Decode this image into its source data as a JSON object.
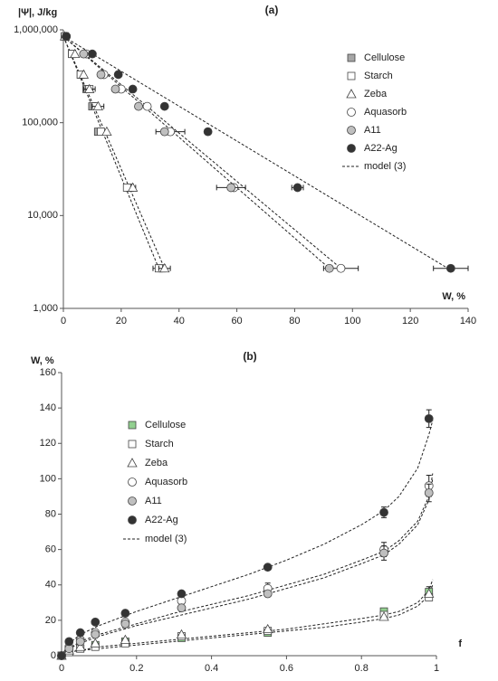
{
  "chart_data": [
    {
      "type": "scatter",
      "title": "(a)",
      "y_label": "|Ψ|, J/kg",
      "x_label": "W, %",
      "xlim": [
        0,
        140
      ],
      "xticks": [
        0,
        20,
        40,
        60,
        80,
        100,
        120,
        140
      ],
      "ylim": [
        1000,
        1000000
      ],
      "ylog": true,
      "yticks": [
        {
          "value": 1000,
          "label": "1,000"
        },
        {
          "value": 10000,
          "label": "10,000"
        },
        {
          "value": 100000,
          "label": "100,000"
        },
        {
          "value": 1000000,
          "label": "1,000,000"
        }
      ],
      "legend": "upper right",
      "y": [
        850000,
        550000,
        330000,
        230000,
        150000,
        80000,
        20000,
        2700
      ],
      "series": [
        {
          "name": "Cellulose",
          "marker": "square",
          "color": "#a6a6a6",
          "x": [
            0.5,
            3,
            6,
            8,
            10,
            12,
            23,
            34
          ],
          "x_errors": [
            null,
            null,
            null,
            null,
            null,
            null,
            2,
            null
          ]
        },
        {
          "name": "Starch",
          "marker": "square",
          "color": "#ffffff",
          "x": [
            0.5,
            3,
            6,
            9,
            11,
            13,
            22,
            33
          ],
          "x_errors": [
            null,
            null,
            null,
            null,
            null,
            null,
            null,
            2
          ]
        },
        {
          "name": "Zeba",
          "marker": "triangle",
          "color": "#ffffff",
          "x": [
            0.5,
            4,
            7,
            9,
            12,
            15,
            24,
            35
          ],
          "x_errors": [
            null,
            null,
            null,
            2,
            2,
            null,
            null,
            2
          ]
        },
        {
          "name": "Aquasorb",
          "marker": "circle",
          "color": "#ffffff",
          "x": [
            1,
            8,
            14,
            20,
            29,
            37,
            59,
            96
          ],
          "x_errors": [
            null,
            null,
            null,
            null,
            null,
            5,
            null,
            6
          ]
        },
        {
          "name": "A11",
          "marker": "circle",
          "color": "#bfbfbf",
          "x": [
            1,
            7,
            13,
            18,
            26,
            35,
            58,
            92
          ],
          "x_errors": [
            null,
            null,
            null,
            null,
            null,
            null,
            5,
            null
          ]
        },
        {
          "name": "A22-Ag",
          "marker": "circle",
          "color": "#333333",
          "x": [
            1,
            10,
            19,
            24,
            35,
            50,
            81,
            134
          ],
          "x_errors": [
            null,
            null,
            null,
            null,
            null,
            null,
            2,
            6
          ]
        }
      ],
      "model": {
        "name": "model (3)",
        "lines": [
          {
            "x": [
              0,
              35
            ],
            "y": [
              850000,
              2700
            ]
          },
          {
            "x": [
              0,
              33
            ],
            "y": [
              850000,
              2700
            ]
          },
          {
            "x": [
              0,
              92
            ],
            "y": [
              850000,
              2700
            ]
          },
          {
            "x": [
              0,
              96
            ],
            "y": [
              850000,
              2700
            ]
          },
          {
            "x": [
              0,
              133
            ],
            "y": [
              850000,
              2700
            ]
          }
        ]
      }
    },
    {
      "type": "scatter",
      "title": "(b)",
      "y_label": "W, %",
      "x_label": "f",
      "xlim": [
        0,
        1
      ],
      "xticks": [
        0,
        0.2,
        0.4,
        0.6,
        0.8,
        1
      ],
      "ylim": [
        0,
        160
      ],
      "yticks": [
        0,
        20,
        40,
        60,
        80,
        100,
        120,
        140,
        160
      ],
      "legend": "upper left",
      "x": [
        0,
        0.02,
        0.05,
        0.09,
        0.17,
        0.32,
        0.55,
        0.86,
        0.98
      ],
      "series": [
        {
          "name": "Cellulose",
          "marker": "square",
          "color": "#92d08f",
          "values": [
            0,
            2,
            4,
            6,
            8,
            10,
            13,
            25,
            36
          ],
          "errors": [
            null,
            null,
            null,
            null,
            null,
            null,
            null,
            null,
            3
          ]
        },
        {
          "name": "Starch",
          "marker": "square",
          "color": "#ffffff",
          "values": [
            0,
            2,
            4,
            5,
            7,
            11,
            14,
            23,
            33
          ],
          "errors": [
            null,
            null,
            null,
            null,
            null,
            null,
            null,
            null,
            null
          ]
        },
        {
          "name": "Zeba",
          "marker": "triangle",
          "color": "#ffffff",
          "values": [
            0,
            3,
            5,
            7,
            9,
            12,
            15,
            22,
            35
          ],
          "errors": [
            null,
            null,
            null,
            null,
            null,
            null,
            null,
            null,
            null
          ]
        },
        {
          "name": "Aquasorb",
          "marker": "circle",
          "color": "#ffffff",
          "values": [
            0,
            5,
            9,
            13,
            19,
            31,
            38,
            60,
            96
          ],
          "errors": [
            null,
            null,
            null,
            null,
            null,
            null,
            3,
            4,
            6
          ]
        },
        {
          "name": "A11",
          "marker": "circle",
          "color": "#bfbfbf",
          "values": [
            0,
            4,
            8,
            12,
            18,
            27,
            35,
            58,
            92
          ],
          "errors": [
            null,
            null,
            null,
            null,
            null,
            null,
            null,
            4,
            5
          ]
        },
        {
          "name": "A22-Ag",
          "marker": "circle",
          "color": "#333333",
          "values": [
            0,
            8,
            13,
            19,
            24,
            35,
            50,
            81,
            134
          ],
          "errors": [
            null,
            null,
            null,
            null,
            null,
            null,
            null,
            3,
            5
          ]
        }
      ],
      "model": {
        "name": "model (3)",
        "lines": [
          {
            "x": [
              0,
              0.02,
              0.05,
              0.1,
              0.2,
              0.3,
              0.4,
              0.5,
              0.6,
              0.7,
              0.8,
              0.86,
              0.9,
              0.95,
              0.98,
              0.99
            ],
            "y": [
              0,
              7,
              12,
              17,
              25,
              32,
              39,
              46,
              54,
              63,
              74,
              82,
              90,
              106,
              125,
              133
            ]
          },
          {
            "x": [
              0,
              0.02,
              0.05,
              0.1,
              0.2,
              0.3,
              0.4,
              0.5,
              0.6,
              0.7,
              0.8,
              0.86,
              0.9,
              0.95,
              0.98,
              0.99
            ],
            "y": [
              0,
              4,
              8,
              12,
              18,
              24,
              29,
              34,
              40,
              46,
              54,
              59,
              65,
              76,
              90,
              103
            ]
          },
          {
            "x": [
              0,
              0.02,
              0.05,
              0.1,
              0.2,
              0.3,
              0.4,
              0.5,
              0.6,
              0.7,
              0.8,
              0.86,
              0.9,
              0.95,
              0.98,
              0.99
            ],
            "y": [
              0,
              4,
              7,
              11,
              17,
              22,
              27,
              32,
              38,
              44,
              52,
              57,
              63,
              74,
              88,
              100
            ]
          },
          {
            "x": [
              0,
              0.02,
              0.05,
              0.1,
              0.2,
              0.3,
              0.4,
              0.5,
              0.6,
              0.7,
              0.8,
              0.86,
              0.9,
              0.95,
              0.98,
              0.99
            ],
            "y": [
              0,
              2,
              3,
              5,
              7,
              9,
              11,
              13,
              15,
              18,
              21,
              23,
              25,
              30,
              37,
              43
            ]
          },
          {
            "x": [
              0,
              0.02,
              0.05,
              0.1,
              0.2,
              0.3,
              0.4,
              0.5,
              0.6,
              0.7,
              0.8,
              0.86,
              0.9,
              0.95,
              0.98,
              0.99
            ],
            "y": [
              0,
              2,
              3,
              4,
              6,
              8,
              10,
              12,
              14,
              16,
              19,
              21,
              23,
              28,
              34,
              40
            ]
          }
        ]
      }
    }
  ]
}
